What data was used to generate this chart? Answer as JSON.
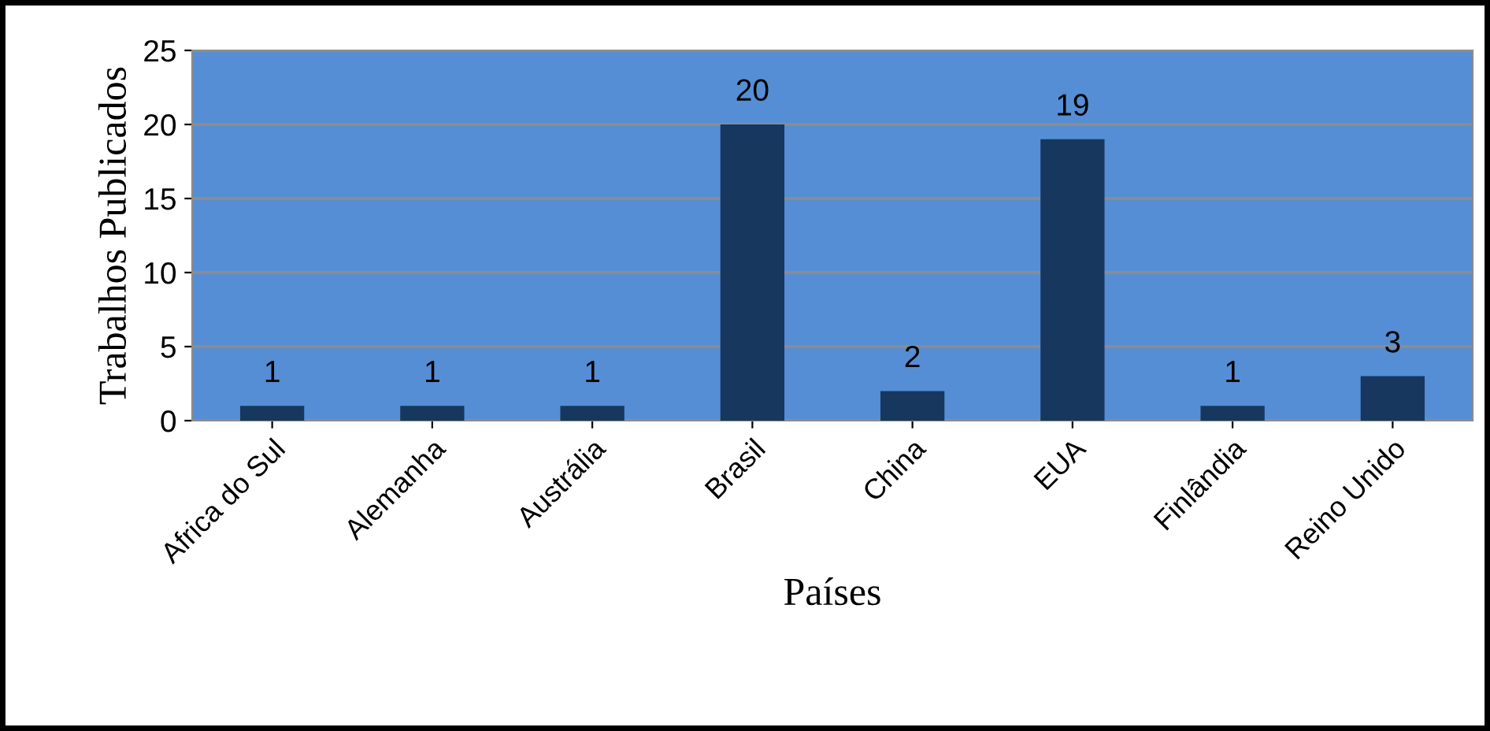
{
  "chart_data": {
    "type": "bar",
    "xlabel": "Países",
    "ylabel": "Trabalhos Publicados",
    "categories": [
      "Africa do Sul",
      "Alemanha",
      "Austrália",
      "Brasil",
      "China",
      "EUA",
      "Finlândia",
      "Reino Unido"
    ],
    "values": [
      1,
      1,
      1,
      20,
      2,
      19,
      1,
      3
    ],
    "color": "#17375e",
    "ylim": [
      0,
      25
    ],
    "yticks": [
      0,
      5,
      10,
      15,
      20,
      25
    ],
    "grid": "y",
    "data_labels": true,
    "legend": false
  }
}
